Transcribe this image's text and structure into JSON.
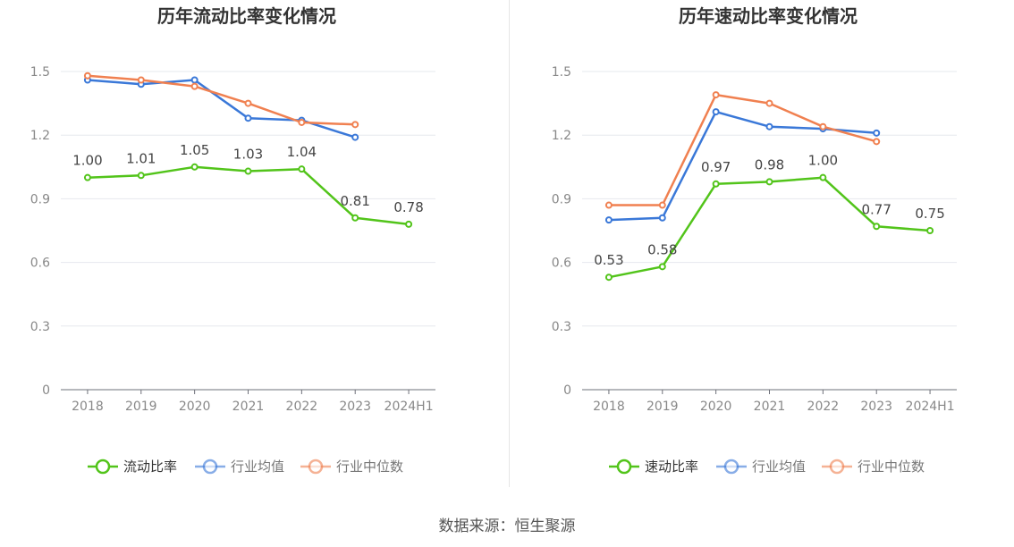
{
  "source": "数据来源：恒生聚源",
  "chart_data": [
    {
      "type": "line",
      "title": "历年流动比率变化情况",
      "categories": [
        "2018",
        "2019",
        "2020",
        "2021",
        "2022",
        "2023",
        "2024H1"
      ],
      "ylim": [
        0,
        1.5
      ],
      "yticks": [
        "0",
        "0.3",
        "0.6",
        "0.9",
        "1.2",
        "1.5"
      ],
      "grid": true,
      "legend_position": "bottom",
      "series": [
        {
          "name": "流动比率",
          "color": "#52c41a",
          "values": [
            1.0,
            1.01,
            1.05,
            1.03,
            1.04,
            0.81,
            0.78
          ],
          "labels": [
            "1.00",
            "1.01",
            "1.05",
            "1.03",
            "1.04",
            "0.81",
            "0.78"
          ]
        },
        {
          "name": "行业均值",
          "color": "#3a78d8",
          "values": [
            1.46,
            1.44,
            1.46,
            1.28,
            1.27,
            1.19,
            null
          ]
        },
        {
          "name": "行业中位数",
          "color": "#f08050",
          "values": [
            1.48,
            1.46,
            1.43,
            1.35,
            1.26,
            1.25,
            null
          ]
        }
      ]
    },
    {
      "type": "line",
      "title": "历年速动比率变化情况",
      "categories": [
        "2018",
        "2019",
        "2020",
        "2021",
        "2022",
        "2023",
        "2024H1"
      ],
      "ylim": [
        0,
        1.5
      ],
      "yticks": [
        "0",
        "0.3",
        "0.6",
        "0.9",
        "1.2",
        "1.5"
      ],
      "grid": true,
      "legend_position": "bottom",
      "series": [
        {
          "name": "速动比率",
          "color": "#52c41a",
          "values": [
            0.53,
            0.58,
            0.97,
            0.98,
            1.0,
            0.77,
            0.75
          ],
          "labels": [
            "0.53",
            "0.58",
            "0.97",
            "0.98",
            "1.00",
            "0.77",
            "0.75"
          ]
        },
        {
          "name": "行业均值",
          "color": "#3a78d8",
          "values": [
            0.8,
            0.81,
            1.31,
            1.24,
            1.23,
            1.21,
            null
          ]
        },
        {
          "name": "行业中位数",
          "color": "#f08050",
          "values": [
            0.87,
            0.87,
            1.39,
            1.35,
            1.24,
            1.17,
            null
          ]
        }
      ]
    }
  ]
}
